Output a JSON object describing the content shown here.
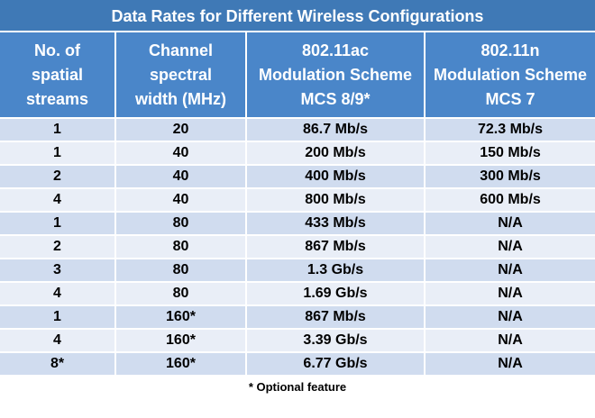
{
  "title": "Data Rates for Different Wireless Configurations",
  "headers": [
    [
      "No. of",
      "spatial",
      "streams"
    ],
    [
      "Channel",
      "spectral",
      "width (MHz)"
    ],
    [
      "802.11ac",
      "Modulation Scheme",
      "MCS 8/9*"
    ],
    [
      "802.11n",
      "Modulation Scheme",
      "MCS 7"
    ]
  ],
  "rows": [
    [
      "1",
      "20",
      "86.7 Mb/s",
      "72.3 Mb/s"
    ],
    [
      "1",
      "40",
      "200 Mb/s",
      "150 Mb/s"
    ],
    [
      "2",
      "40",
      "400 Mb/s",
      "300 Mb/s"
    ],
    [
      "4",
      "40",
      "800 Mb/s",
      "600 Mb/s"
    ],
    [
      "1",
      "80",
      "433 Mb/s",
      "N/A"
    ],
    [
      "2",
      "80",
      "867 Mb/s",
      "N/A"
    ],
    [
      "3",
      "80",
      "1.3 Gb/s",
      "N/A"
    ],
    [
      "4",
      "80",
      "1.69 Gb/s",
      "N/A"
    ],
    [
      "1",
      "160*",
      "867 Mb/s",
      "N/A"
    ],
    [
      "4",
      "160*",
      "3.39 Gb/s",
      "N/A"
    ],
    [
      "8*",
      "160*",
      "6.77 Gb/s",
      "N/A"
    ]
  ],
  "footnote": "* Optional feature",
  "colors": {
    "title_bg": "#3f79b6",
    "header_bg": "#4a86c9",
    "row_odd": "#d0dcef",
    "row_even": "#e9eef7"
  }
}
